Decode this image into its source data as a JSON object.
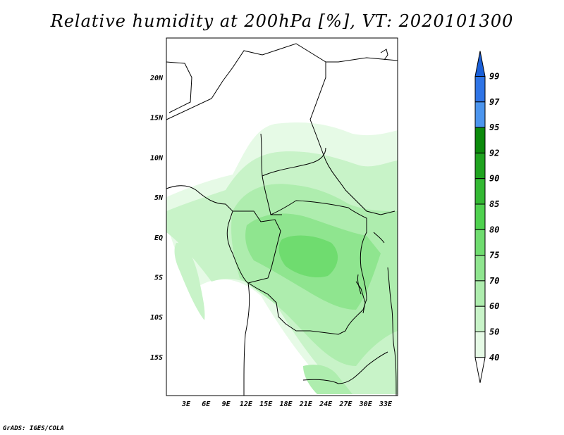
{
  "title": "Relative humidity at 200hPa [%], VT: 2020101300",
  "credit": "GrADS: IGES/COLA",
  "map": {
    "lon_range_deg": [
      0,
      35
    ],
    "lat_range_deg": [
      -20,
      25
    ],
    "x_ticks": [
      "3E",
      "6E",
      "9E",
      "12E",
      "15E",
      "18E",
      "21E",
      "24E",
      "27E",
      "30E",
      "33E"
    ],
    "y_ticks": [
      "20N",
      "15N",
      "10N",
      "5N",
      "EQ",
      "5S",
      "10S",
      "15S"
    ]
  },
  "colorbar": {
    "labels": [
      "99",
      "97",
      "95",
      "92",
      "90",
      "85",
      "80",
      "75",
      "70",
      "60",
      "50",
      "40"
    ],
    "colors": [
      "#1a5fd8",
      "#2f74e6",
      "#4c95ee",
      "#0c8a0c",
      "#1fa31f",
      "#33b833",
      "#4fd14f",
      "#6fdc6f",
      "#8fe58f",
      "#aeedae",
      "#c8f3c8",
      "#e6fae6"
    ]
  }
}
